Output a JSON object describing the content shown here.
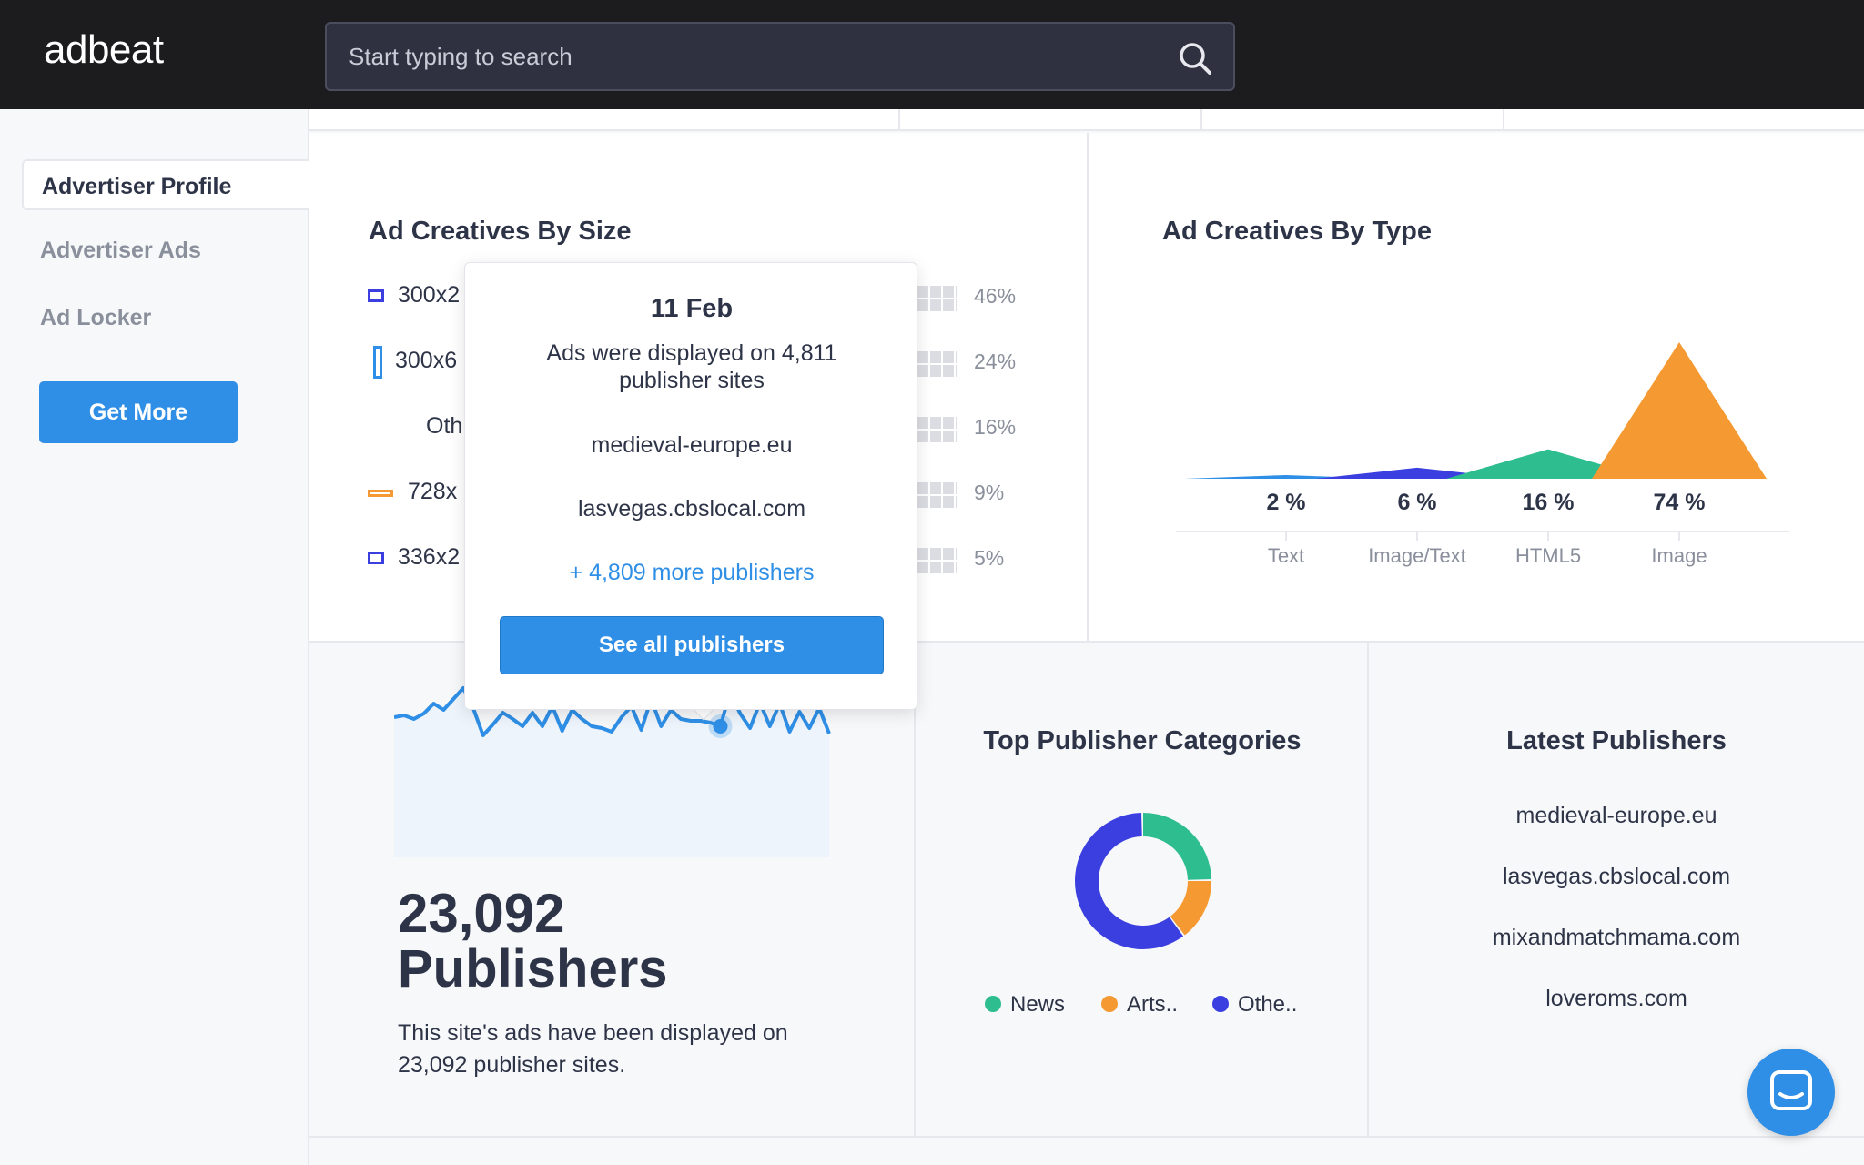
{
  "header": {
    "logo": "adbeat",
    "search_placeholder": "Start typing to search"
  },
  "sidebar": {
    "items": [
      {
        "label": "Advertiser Profile",
        "active": true
      },
      {
        "label": "Advertiser Ads",
        "active": false
      },
      {
        "label": "Ad Locker",
        "active": false
      }
    ],
    "cta_label": "Get More"
  },
  "ad_sizes": {
    "title": "Ad Creatives By Size",
    "rows": [
      {
        "label": "300x2",
        "percent": "46%",
        "color": "#3b3fe0"
      },
      {
        "label": "300x6",
        "percent": "24%",
        "color": "#2f8fe6"
      },
      {
        "label": "Oth",
        "percent": "16%",
        "color": "#ffffff"
      },
      {
        "label": "728x",
        "percent": "9%",
        "color": "#f59a32"
      },
      {
        "label": "336x2",
        "percent": "5%",
        "color": "#3b3fe0"
      }
    ]
  },
  "ad_types": {
    "title": "Ad Creatives By Type",
    "chart_data": {
      "type": "area",
      "categories": [
        "Text",
        "Image/Text",
        "HTML5",
        "Image"
      ],
      "values": [
        2,
        6,
        16,
        74
      ],
      "value_labels": [
        "2 %",
        "6 %",
        "16 %",
        "74 %"
      ],
      "colors": [
        "#2f8fe6",
        "#3b3fe0",
        "#2dbd8e",
        "#f59a32"
      ]
    }
  },
  "tooltip": {
    "date": "11 Feb",
    "description": "Ads were displayed on 4,811 publisher sites",
    "sites": [
      "medieval-europe.eu",
      "lasvegas.cbslocal.com"
    ],
    "more": "+ 4,809 more publishers",
    "button_label": "See all publishers"
  },
  "publishers": {
    "count": "23,092",
    "word": "Publishers",
    "description": "This site's ads have been displayed on 23,092 publisher sites.",
    "sparkline": {
      "type": "line",
      "color": "#2f8fe6",
      "highlight_index": 33,
      "values": [
        40,
        42,
        38,
        44,
        55,
        48,
        60,
        72,
        50,
        20,
        32,
        45,
        38,
        30,
        45,
        30,
        52,
        25,
        48,
        38,
        30,
        28,
        24,
        40,
        52,
        26,
        60,
        30,
        48,
        38,
        36,
        36,
        34,
        30,
        68,
        44,
        28,
        56,
        30,
        55,
        24,
        46,
        28,
        50,
        22
      ]
    }
  },
  "categories": {
    "title": "Top Publisher Categories",
    "chart_data": {
      "type": "pie",
      "labels": [
        "News",
        "Arts..",
        "Othe.."
      ],
      "values": [
        25,
        15,
        60
      ],
      "colors": [
        "#2dbd8e",
        "#f59a32",
        "#3b3fe0"
      ]
    }
  },
  "latest": {
    "title": "Latest Publishers",
    "items": [
      "medieval-europe.eu",
      "lasvegas.cbslocal.com",
      "mixandmatchmama.com",
      "loveroms.com"
    ]
  }
}
